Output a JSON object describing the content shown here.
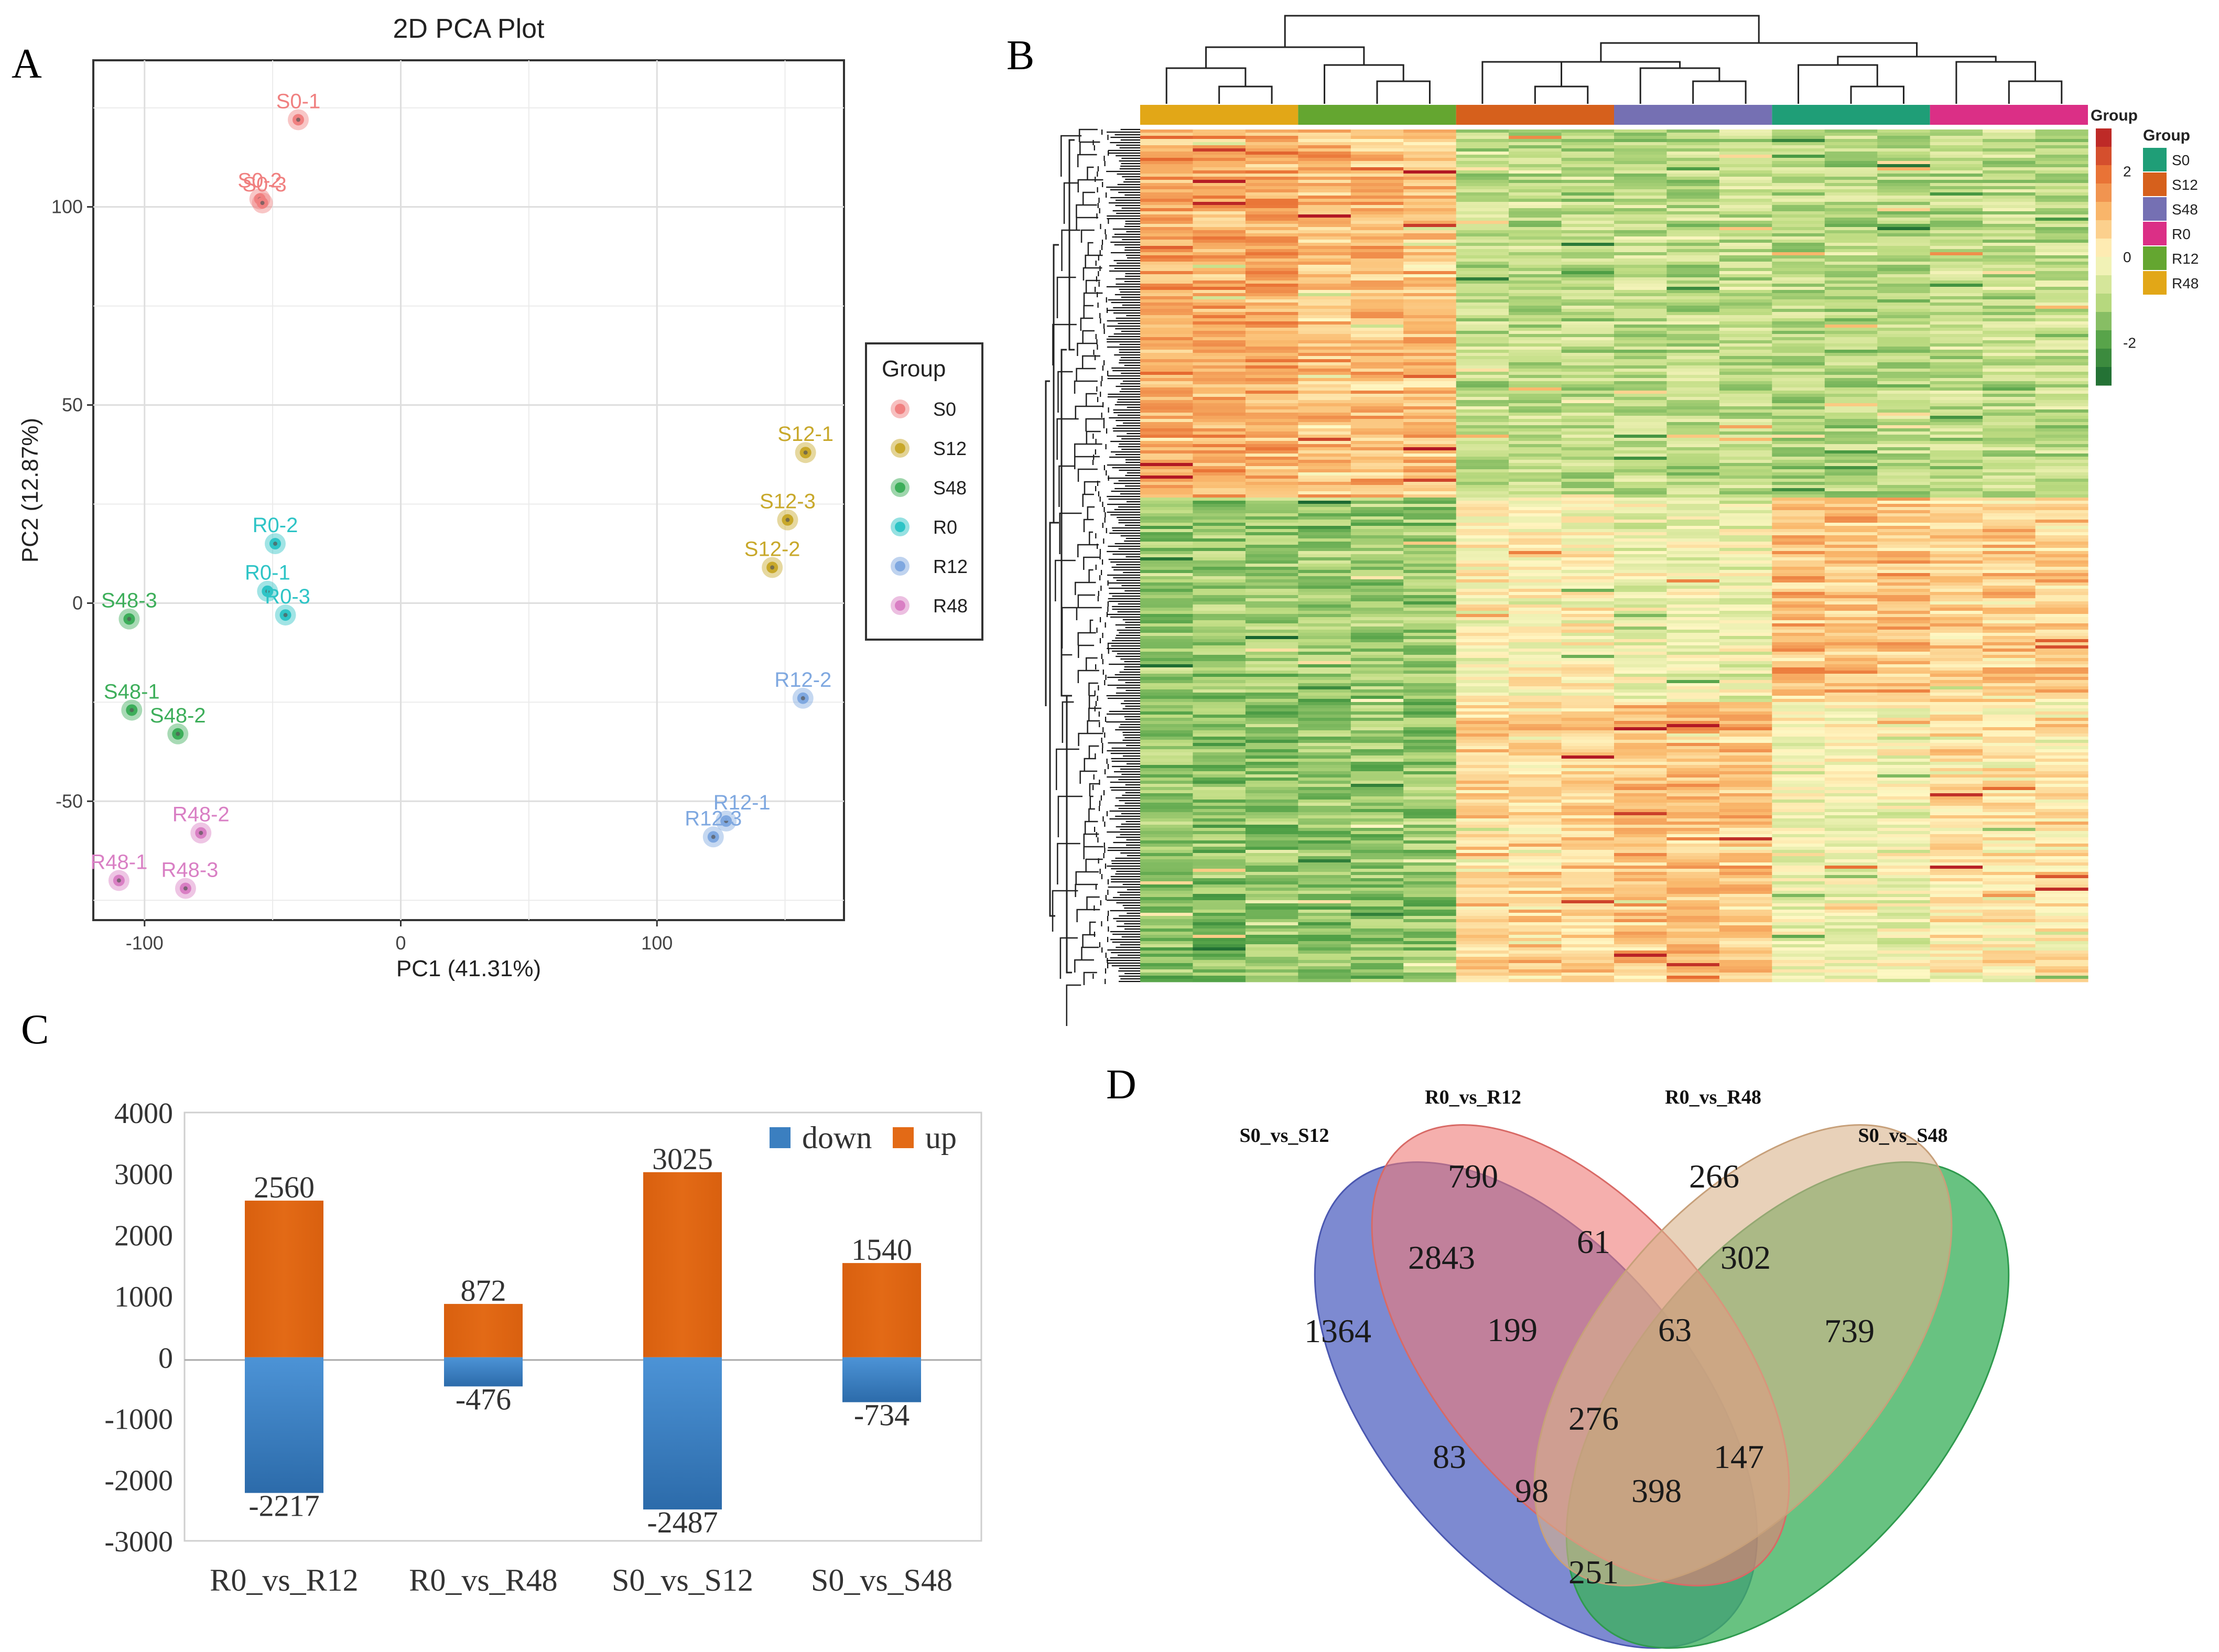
{
  "panels": {
    "a": "A",
    "b": "B",
    "c": "C",
    "d": "D"
  },
  "colors": {
    "S0": "#F08080",
    "S12": "#C8A82A",
    "S48": "#3DAE5A",
    "R0": "#2EC4C6",
    "R12": "#7FA8E0",
    "R48": "#D97FC4",
    "heat_S0": "#1F9E77",
    "heat_S12": "#D6601C",
    "heat_S48": "#7570B3",
    "heat_R0": "#DB2F86",
    "heat_R12": "#64A630",
    "heat_R48": "#E2A717",
    "down": "#3B7FC0",
    "up": "#E36A16",
    "venn_s12": "#5869C4",
    "venn_r12": "#EE7A76",
    "venn_r48": "#D8B28A",
    "venn_s48": "#3EB15E"
  },
  "chart_data": [
    {
      "type": "scatter",
      "title": "2D PCA Plot",
      "xlabel": "PC1 (41.31%)",
      "ylabel": "PC2 (12.87%)",
      "xlim": [
        -120,
        173
      ],
      "ylim": [
        -80,
        137
      ],
      "xticks": [
        -100,
        0,
        100
      ],
      "xtick_labels": [
        "-100",
        "0",
        "100"
      ],
      "yticks": [
        -50,
        0,
        50,
        100
      ],
      "ytick_labels": [
        "-50",
        "0",
        "50",
        "100"
      ],
      "grid": true,
      "legend_title": "Group",
      "legend_position": "right",
      "legend": [
        "S0",
        "S12",
        "S48",
        "R0",
        "R12",
        "R48"
      ],
      "points": [
        {
          "label": "S0-1",
          "group": "S0",
          "x": -40,
          "y": 122
        },
        {
          "label": "S0-2",
          "group": "S0",
          "x": -55,
          "y": 102
        },
        {
          "label": "S0-3",
          "group": "S0",
          "x": -54,
          "y": 101
        },
        {
          "label": "S12-1",
          "group": "S12",
          "x": 158,
          "y": 38
        },
        {
          "label": "S12-3",
          "group": "S12",
          "x": 151,
          "y": 21
        },
        {
          "label": "S12-2",
          "group": "S12",
          "x": 145,
          "y": 9
        },
        {
          "label": "S48-3",
          "group": "S48",
          "x": -106,
          "y": -4
        },
        {
          "label": "S48-1",
          "group": "S48",
          "x": -105,
          "y": -27
        },
        {
          "label": "S48-2",
          "group": "S48",
          "x": -87,
          "y": -33
        },
        {
          "label": "R0-2",
          "group": "R0",
          "x": -49,
          "y": 15
        },
        {
          "label": "R0-1",
          "group": "R0",
          "x": -52,
          "y": 3
        },
        {
          "label": "R0-3",
          "group": "R0",
          "x": -45,
          "y": -3
        },
        {
          "label": "R12-2",
          "group": "R12",
          "x": 157,
          "y": -24
        },
        {
          "label": "R12-1",
          "group": "R12",
          "x": 127,
          "y": -55
        },
        {
          "label": "R12-3",
          "group": "R12",
          "x": 122,
          "y": -59
        },
        {
          "label": "R48-2",
          "group": "R48",
          "x": -78,
          "y": -58
        },
        {
          "label": "R48-1",
          "group": "R48",
          "x": -110,
          "y": -70
        },
        {
          "label": "R48-3",
          "group": "R48",
          "x": -84,
          "y": -72
        }
      ]
    },
    {
      "type": "heatmap",
      "title": "",
      "column_groups": [
        "R48",
        "R12",
        "S12",
        "S48",
        "S0",
        "R0"
      ],
      "replicates_per_group": 3,
      "row_clusters": [
        {
          "name": "cluster1",
          "share": 0.43,
          "levels": {
            "R48": 1.2,
            "R12": 0.9,
            "S12": -0.9,
            "S48": -0.9,
            "S0": -1.0,
            "R0": -0.9
          }
        },
        {
          "name": "cluster2",
          "share": 0.24,
          "levels": {
            "R48": -1.3,
            "R12": -1.3,
            "S12": 0.0,
            "S48": -0.3,
            "S0": 0.8,
            "R0": 0.6
          }
        },
        {
          "name": "cluster3",
          "share": 0.33,
          "levels": {
            "R48": -1.4,
            "R12": -1.3,
            "S12": 0.6,
            "S48": 0.9,
            "S0": -0.2,
            "R0": 0.3
          }
        }
      ],
      "colorbar_title": "Group",
      "colorbar_ticks": [
        2,
        0,
        -2
      ],
      "colorbar_tick_labels": [
        "2",
        "0",
        "-2"
      ],
      "legend_title": "Group",
      "legend": [
        "S0",
        "S12",
        "S48",
        "R0",
        "R12",
        "R48"
      ]
    },
    {
      "type": "bar",
      "title": "",
      "categories": [
        "R0_vs_R12",
        "R0_vs_R48",
        "S0_vs_S12",
        "S0_vs_S48"
      ],
      "series": [
        {
          "name": "up",
          "values": [
            2560,
            872,
            3025,
            1540
          ],
          "labels": [
            "2560",
            "872",
            "3025",
            "1540"
          ]
        },
        {
          "name": "down",
          "values": [
            -2217,
            -476,
            -2487,
            -734
          ],
          "labels": [
            "-2217",
            "-476",
            "-2487",
            "-734"
          ]
        }
      ],
      "legend": [
        "down",
        "up"
      ],
      "legend_position": "top-right",
      "ylim": [
        -3000,
        4000
      ],
      "yticks": [
        4000,
        3000,
        2000,
        1000,
        0,
        -1000,
        -2000,
        -3000
      ],
      "ytick_labels": [
        "4000",
        "3000",
        "2000",
        "1000",
        "0",
        "-1000",
        "-2000",
        "-3000"
      ],
      "xlabel": "",
      "ylabel": ""
    },
    {
      "type": "venn",
      "sets": [
        "S0_vs_S12",
        "R0_vs_R12",
        "R0_vs_R48",
        "S0_vs_S48"
      ],
      "regions": [
        {
          "sets": [
            "S0_vs_S12"
          ],
          "value": 1364,
          "label": "1364"
        },
        {
          "sets": [
            "R0_vs_R12"
          ],
          "value": 790,
          "label": "790"
        },
        {
          "sets": [
            "R0_vs_R48"
          ],
          "value": 266,
          "label": "266"
        },
        {
          "sets": [
            "S0_vs_S48"
          ],
          "value": 739,
          "label": "739"
        },
        {
          "sets": [
            "S0_vs_S12",
            "R0_vs_R12"
          ],
          "value": 2843,
          "label": "2843"
        },
        {
          "sets": [
            "R0_vs_R12",
            "R0_vs_R48"
          ],
          "value": 61,
          "label": "61"
        },
        {
          "sets": [
            "R0_vs_R48",
            "S0_vs_S48"
          ],
          "value": 302,
          "label": "302"
        },
        {
          "sets": [
            "S0_vs_S12",
            "R0_vs_R12",
            "R0_vs_R48"
          ],
          "value": 199,
          "label": "199"
        },
        {
          "sets": [
            "R0_vs_R12",
            "R0_vs_R48",
            "S0_vs_S48"
          ],
          "value": 63,
          "label": "63"
        },
        {
          "sets": [
            "S0_vs_S12",
            "R0_vs_R12",
            "R0_vs_R48",
            "S0_vs_S48"
          ],
          "value": 276,
          "label": "276"
        },
        {
          "sets": [
            "S0_vs_S12",
            "R0_vs_R48"
          ],
          "value": 83,
          "label": "83"
        },
        {
          "sets": [
            "R0_vs_R12",
            "S0_vs_S48"
          ],
          "value": 147,
          "label": "147"
        },
        {
          "sets": [
            "S0_vs_S12",
            "R0_vs_R48",
            "S0_vs_S48"
          ],
          "value": 98,
          "label": "98"
        },
        {
          "sets": [
            "S0_vs_S12",
            "R0_vs_R12",
            "S0_vs_S48"
          ],
          "value": 398,
          "label": "398"
        },
        {
          "sets": [
            "S0_vs_S12",
            "S0_vs_S48"
          ],
          "value": 251,
          "label": "251"
        }
      ]
    }
  ]
}
